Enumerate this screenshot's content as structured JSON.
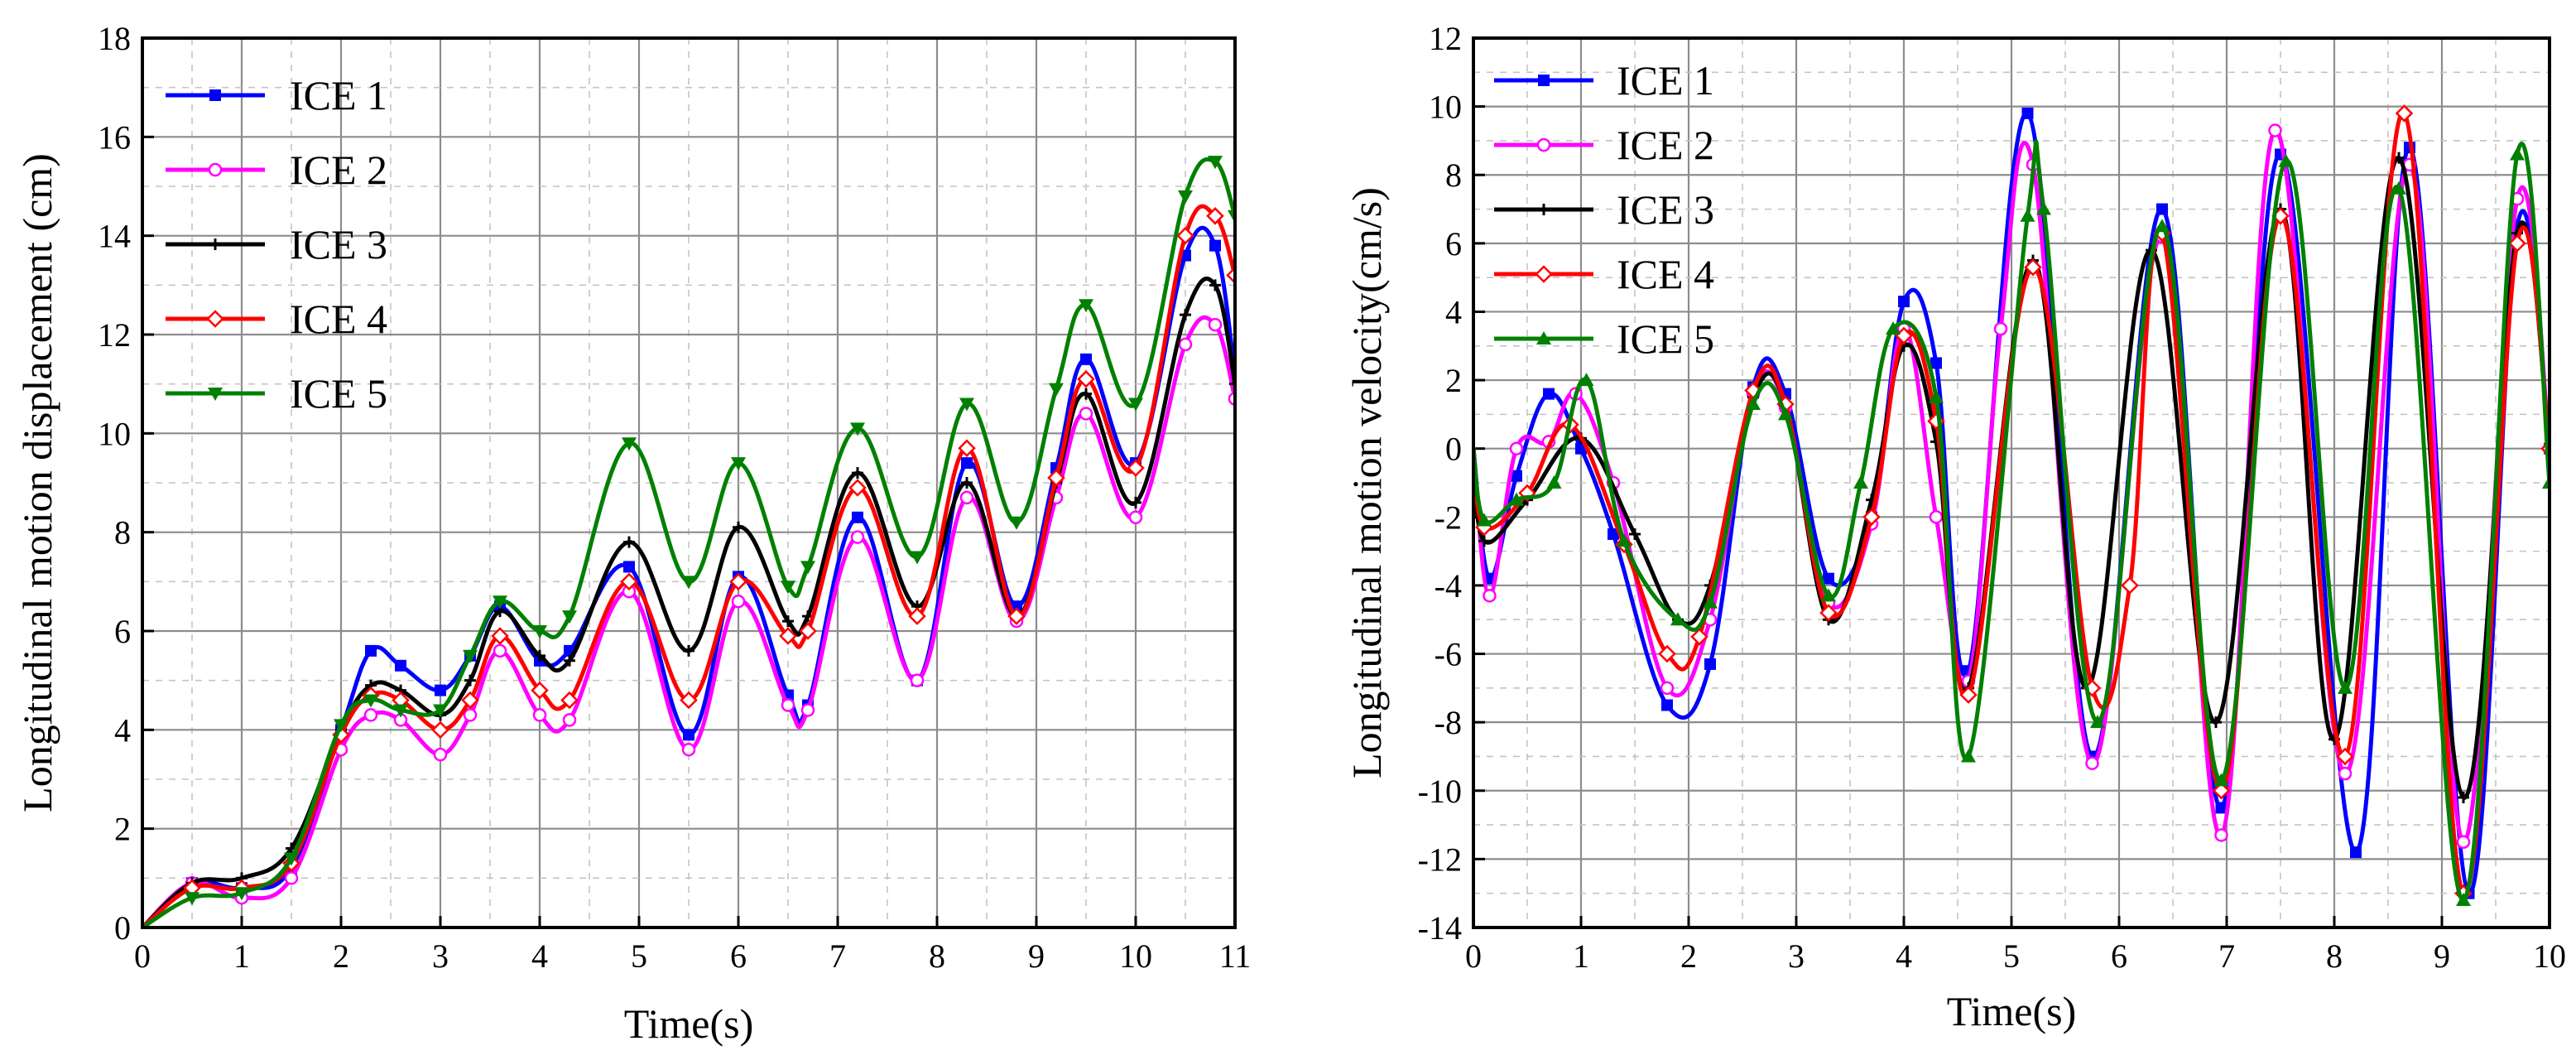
{
  "chart_data": [
    {
      "type": "line",
      "xlabel": "Time(s)",
      "ylabel": "Longitudinal motion displacement (cm)",
      "xlim": [
        0,
        11
      ],
      "ylim": [
        0,
        18
      ],
      "xticks": [
        "0",
        "1",
        "2",
        "3",
        "4",
        "5",
        "6",
        "7",
        "8",
        "9",
        "10",
        "11"
      ],
      "yticks": [
        "0",
        "2",
        "4",
        "6",
        "8",
        "10",
        "12",
        "14",
        "16",
        "18"
      ],
      "grid": true,
      "legend_position": "top-left",
      "series": [
        {
          "name": "ICE 1",
          "color": "#0000ff",
          "marker": "square",
          "x": [
            0,
            0.5,
            1,
            1.5,
            2,
            2.3,
            2.6,
            3,
            3.3,
            3.6,
            4,
            4.3,
            4.9,
            5.5,
            6,
            6.5,
            6.7,
            7.2,
            7.8,
            8.3,
            8.8,
            9.2,
            9.5,
            10,
            10.5,
            10.8,
            11
          ],
          "y": [
            0,
            0.9,
            0.8,
            1.2,
            4.0,
            5.6,
            5.3,
            4.8,
            5.5,
            6.5,
            5.4,
            5.6,
            7.3,
            3.9,
            7.1,
            4.7,
            4.5,
            8.3,
            5.0,
            9.4,
            6.5,
            9.3,
            11.5,
            9.4,
            13.6,
            13.8,
            11.2
          ]
        },
        {
          "name": "ICE 2",
          "color": "#ff00ff",
          "marker": "circle",
          "x": [
            0,
            0.5,
            1,
            1.5,
            2,
            2.3,
            2.6,
            3,
            3.3,
            3.6,
            4,
            4.3,
            4.9,
            5.5,
            6,
            6.5,
            6.7,
            7.2,
            7.8,
            8.3,
            8.8,
            9.2,
            9.5,
            10,
            10.5,
            10.8,
            11
          ],
          "y": [
            0,
            0.9,
            0.6,
            1.0,
            3.6,
            4.3,
            4.2,
            3.5,
            4.3,
            5.6,
            4.3,
            4.2,
            6.8,
            3.6,
            6.6,
            4.5,
            4.4,
            7.9,
            5.0,
            8.7,
            6.2,
            8.7,
            10.4,
            8.3,
            11.8,
            12.2,
            10.7
          ]
        },
        {
          "name": "ICE 3",
          "color": "#000000",
          "marker": "plus",
          "x": [
            0,
            0.5,
            1,
            1.5,
            2,
            2.3,
            2.6,
            3,
            3.3,
            3.6,
            4,
            4.3,
            4.9,
            5.5,
            6,
            6.5,
            6.7,
            7.2,
            7.8,
            8.3,
            8.8,
            9.2,
            9.5,
            10,
            10.5,
            10.8,
            11
          ],
          "y": [
            0,
            0.9,
            1.0,
            1.6,
            4.0,
            4.9,
            4.8,
            4.3,
            5.0,
            6.4,
            5.5,
            5.4,
            7.8,
            5.6,
            8.1,
            6.2,
            6.3,
            9.2,
            6.5,
            9.0,
            6.3,
            9.0,
            10.8,
            8.6,
            12.4,
            13.0,
            11.0
          ]
        },
        {
          "name": "ICE 4",
          "color": "#ff0000",
          "marker": "diamond",
          "x": [
            0,
            0.5,
            1,
            1.5,
            2,
            2.3,
            2.6,
            3,
            3.3,
            3.6,
            4,
            4.3,
            4.9,
            5.5,
            6,
            6.5,
            6.7,
            7.2,
            7.8,
            8.3,
            8.8,
            9.2,
            9.5,
            10,
            10.5,
            10.8,
            11
          ],
          "y": [
            0,
            0.8,
            0.8,
            1.3,
            3.9,
            4.7,
            4.6,
            4.0,
            4.6,
            5.9,
            4.8,
            4.6,
            7.0,
            4.6,
            7.0,
            5.9,
            6.0,
            8.9,
            6.3,
            9.7,
            6.3,
            9.1,
            11.1,
            9.3,
            14.0,
            14.4,
            13.2
          ]
        },
        {
          "name": "ICE 5",
          "color": "#008000",
          "marker": "triangle-down",
          "x": [
            0,
            0.5,
            1,
            1.5,
            2,
            2.3,
            2.6,
            3,
            3.3,
            3.6,
            4,
            4.3,
            4.9,
            5.5,
            6,
            6.5,
            6.7,
            7.2,
            7.8,
            8.3,
            8.8,
            9.2,
            9.5,
            10,
            10.5,
            10.8,
            11
          ],
          "y": [
            0,
            0.6,
            0.7,
            1.4,
            4.1,
            4.6,
            4.4,
            4.4,
            5.5,
            6.6,
            6.0,
            6.3,
            9.8,
            7.0,
            9.4,
            6.9,
            7.3,
            10.1,
            7.5,
            10.6,
            8.2,
            10.9,
            12.6,
            10.6,
            14.8,
            15.5,
            14.4
          ]
        }
      ]
    },
    {
      "type": "line",
      "xlabel": "Time(s)",
      "ylabel": "Longitudinal motion velocity(cm/s)",
      "xlim": [
        0,
        10
      ],
      "ylim": [
        -14,
        12
      ],
      "xticks": [
        "0",
        "1",
        "2",
        "3",
        "4",
        "5",
        "6",
        "7",
        "8",
        "9",
        "10"
      ],
      "yticks": [
        "-14",
        "-12",
        "-10",
        "-8",
        "-6",
        "-4",
        "-2",
        "0",
        "2",
        "4",
        "6",
        "8",
        "10",
        "12"
      ],
      "grid": true,
      "legend_position": "top-left",
      "series": [
        {
          "name": "ICE 1",
          "color": "#0000ff",
          "marker": "square",
          "x": [
            0,
            0.15,
            0.4,
            0.7,
            1,
            1.3,
            1.8,
            2.2,
            2.6,
            2.9,
            3.3,
            3.7,
            4,
            4.3,
            4.6,
            5.15,
            5.75,
            6.4,
            6.95,
            7.5,
            8.2,
            8.7,
            9.25,
            9.7,
            10
          ],
          "y": [
            0,
            -3.8,
            -0.8,
            1.6,
            0,
            -2.5,
            -7.5,
            -6.3,
            1.8,
            1.6,
            -3.8,
            -2.0,
            4.3,
            2.5,
            -6.5,
            9.8,
            -9.0,
            7.0,
            -10.5,
            8.6,
            -11.8,
            8.8,
            -13.0,
            6.5,
            0
          ]
        },
        {
          "name": "ICE 2",
          "color": "#ff00ff",
          "marker": "circle",
          "x": [
            0,
            0.15,
            0.4,
            0.7,
            0.95,
            1.3,
            1.8,
            2.2,
            2.6,
            2.9,
            3.3,
            3.7,
            4,
            4.3,
            4.6,
            4.9,
            5.2,
            5.75,
            6.4,
            6.95,
            7.45,
            8.1,
            8.7,
            9.2,
            9.7,
            10
          ],
          "y": [
            0,
            -4.3,
            0,
            0.2,
            1.6,
            -1.0,
            -7.0,
            -5.0,
            1.6,
            1.2,
            -4.5,
            -2.2,
            3.5,
            -2.0,
            -6.8,
            3.5,
            8.3,
            -9.2,
            6.2,
            -11.3,
            9.3,
            -9.5,
            8.3,
            -11.5,
            7.3,
            0
          ]
        },
        {
          "name": "ICE 3",
          "color": "#000000",
          "marker": "plus",
          "x": [
            0,
            0.1,
            0.5,
            1,
            1.5,
            1.9,
            2.2,
            2.6,
            2.9,
            3.3,
            3.7,
            4,
            4.3,
            4.6,
            5.2,
            5.7,
            6.3,
            6.9,
            7.5,
            8.0,
            8.6,
            9.2,
            9.7,
            10
          ],
          "y": [
            0,
            -2.7,
            -1.5,
            0.3,
            -2.5,
            -5.0,
            -4.0,
            1.5,
            1.3,
            -5.0,
            -1.5,
            3.0,
            0.2,
            -7.0,
            5.5,
            -7.0,
            5.8,
            -8.0,
            7.0,
            -8.5,
            8.5,
            -10.2,
            6.3,
            0
          ]
        },
        {
          "name": "ICE 4",
          "color": "#ff0000",
          "marker": "diamond",
          "x": [
            0,
            0.1,
            0.5,
            0.9,
            1.4,
            1.8,
            2.1,
            2.6,
            2.9,
            3.3,
            3.7,
            4,
            4.3,
            4.6,
            5.2,
            5.75,
            6.1,
            6.4,
            6.95,
            7.5,
            8.1,
            8.65,
            9.2,
            9.7,
            10
          ],
          "y": [
            0,
            -2.3,
            -1.3,
            0.7,
            -2.8,
            -6.0,
            -5.5,
            1.7,
            1.3,
            -4.8,
            -2.0,
            3.3,
            0.8,
            -7.2,
            5.3,
            -7.0,
            -4.0,
            6.3,
            -10.0,
            6.8,
            -9.0,
            9.8,
            -13.0,
            6.0,
            0
          ]
        },
        {
          "name": "ICE 5",
          "color": "#008000",
          "marker": "triangle-up",
          "x": [
            0,
            0.1,
            0.4,
            0.75,
            1.05,
            1.4,
            1.9,
            2.2,
            2.6,
            2.9,
            3.3,
            3.6,
            3.9,
            4.3,
            4.6,
            5.15,
            5.3,
            5.8,
            6.4,
            6.95,
            7.55,
            8.1,
            8.6,
            9.2,
            9.7,
            10
          ],
          "y": [
            0,
            -2.1,
            -1.5,
            -1.0,
            2.0,
            -2.7,
            -5.0,
            -4.5,
            1.3,
            1.0,
            -4.3,
            -1.0,
            3.5,
            1.5,
            -9.0,
            6.8,
            7.0,
            -8.0,
            6.5,
            -9.7,
            8.4,
            -7.0,
            7.6,
            -13.2,
            8.6,
            -1.0
          ]
        }
      ]
    }
  ]
}
